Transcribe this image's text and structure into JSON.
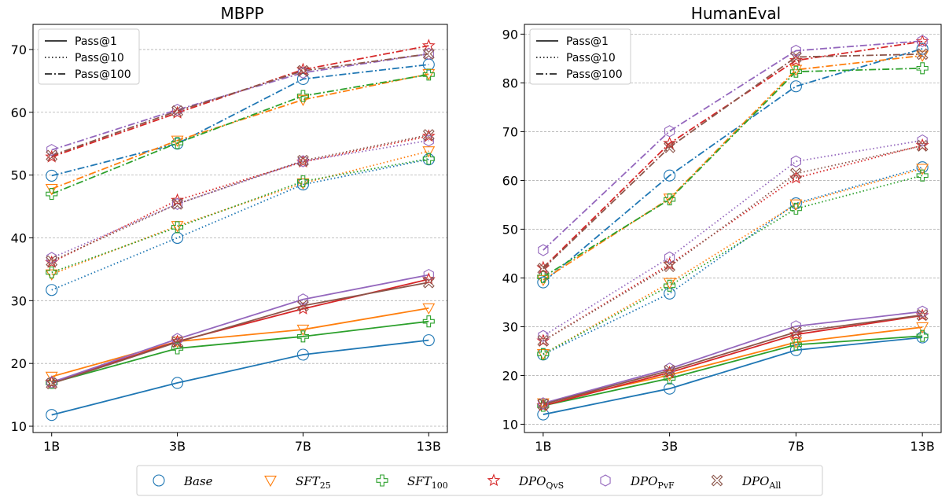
{
  "colors": {
    "Base": "#1f77b4",
    "SFT25": "#ff7f0e",
    "SFT100": "#2ca02c",
    "DPOQvS": "#d62728",
    "DPOPvF": "#9467bd",
    "DPOAll": "#8c564b"
  },
  "markers": {
    "Base": "circle",
    "SFT25": "triangle-down",
    "SFT100": "plus",
    "DPOQvS": "star",
    "DPOPvF": "hexagon",
    "DPOAll": "x"
  },
  "style_legend": {
    "items": [
      {
        "label": "Pass@1",
        "dash": "solid"
      },
      {
        "label": "Pass@10",
        "dash": "dotted"
      },
      {
        "label": "Pass@100",
        "dash": "dashdot"
      }
    ]
  },
  "bottom_legend": {
    "items": [
      {
        "key": "Base",
        "label": "Base",
        "sub": ""
      },
      {
        "key": "SFT25",
        "label": "SFT",
        "sub": "25"
      },
      {
        "key": "SFT100",
        "label": "SFT",
        "sub": "100"
      },
      {
        "key": "DPOQvS",
        "label": "DPO",
        "sub": "QvS"
      },
      {
        "key": "DPOPvF",
        "label": "DPO",
        "sub": "PvF"
      },
      {
        "key": "DPOAll",
        "label": "DPO",
        "sub": "All"
      }
    ]
  },
  "chart_data": [
    {
      "type": "line",
      "title": "MBPP",
      "categories": [
        "1B",
        "3B",
        "7B",
        "13B"
      ],
      "ylim": [
        9,
        74
      ],
      "yticks": [
        10,
        20,
        30,
        40,
        50,
        60,
        70
      ],
      "grid": true,
      "legend_position": "top-left",
      "series": [
        {
          "model": "Base",
          "metric": "Pass@1",
          "values": [
            11.8,
            16.9,
            21.4,
            23.7
          ]
        },
        {
          "model": "SFT25",
          "metric": "Pass@1",
          "values": [
            17.9,
            23.5,
            25.4,
            28.8
          ]
        },
        {
          "model": "SFT100",
          "metric": "Pass@1",
          "values": [
            16.9,
            22.4,
            24.3,
            26.7
          ]
        },
        {
          "model": "DPOQvS",
          "metric": "Pass@1",
          "values": [
            17.0,
            23.5,
            28.7,
            33.4
          ]
        },
        {
          "model": "DPOPvF",
          "metric": "Pass@1",
          "values": [
            17.0,
            23.9,
            30.2,
            34.1
          ]
        },
        {
          "model": "DPOAll",
          "metric": "Pass@1",
          "values": [
            16.8,
            23.4,
            29.2,
            32.9
          ]
        },
        {
          "model": "Base",
          "metric": "Pass@10",
          "values": [
            31.7,
            40.0,
            48.5,
            52.5
          ]
        },
        {
          "model": "SFT25",
          "metric": "Pass@10",
          "values": [
            34.2,
            41.9,
            48.7,
            53.8
          ]
        },
        {
          "model": "SFT100",
          "metric": "Pass@10",
          "values": [
            34.5,
            41.7,
            49.0,
            52.6
          ]
        },
        {
          "model": "DPOQvS",
          "metric": "Pass@10",
          "values": [
            36.1,
            46.0,
            52.1,
            56.2
          ]
        },
        {
          "model": "DPOPvF",
          "metric": "Pass@10",
          "values": [
            36.8,
            45.4,
            52.2,
            55.5
          ]
        },
        {
          "model": "DPOAll",
          "metric": "Pass@10",
          "values": [
            36.3,
            45.4,
            52.3,
            56.4
          ]
        },
        {
          "model": "Base",
          "metric": "Pass@100",
          "values": [
            49.9,
            55.0,
            65.3,
            67.6
          ]
        },
        {
          "model": "SFT25",
          "metric": "Pass@100",
          "values": [
            47.8,
            55.5,
            62.0,
            66.1
          ]
        },
        {
          "model": "SFT100",
          "metric": "Pass@100",
          "values": [
            47.0,
            55.1,
            62.6,
            66.0
          ]
        },
        {
          "model": "DPOQvS",
          "metric": "Pass@100",
          "values": [
            52.9,
            59.9,
            66.8,
            70.6
          ]
        },
        {
          "model": "DPOPvF",
          "metric": "Pass@100",
          "values": [
            54.0,
            60.4,
            66.3,
            69.3
          ]
        },
        {
          "model": "DPOAll",
          "metric": "Pass@100",
          "values": [
            53.1,
            60.2,
            66.6,
            69.3
          ]
        }
      ]
    },
    {
      "type": "line",
      "title": "HumanEval",
      "categories": [
        "1B",
        "3B",
        "7B",
        "13B"
      ],
      "ylim": [
        8.3,
        92
      ],
      "yticks": [
        10,
        20,
        30,
        40,
        50,
        60,
        70,
        80,
        90
      ],
      "grid": true,
      "legend_position": "top-left",
      "series": [
        {
          "model": "Base",
          "metric": "Pass@1",
          "values": [
            12.0,
            17.3,
            25.2,
            27.8
          ]
        },
        {
          "model": "SFT25",
          "metric": "Pass@1",
          "values": [
            14.3,
            20.1,
            26.8,
            29.9
          ]
        },
        {
          "model": "SFT100",
          "metric": "Pass@1",
          "values": [
            13.8,
            19.4,
            26.3,
            28.1
          ]
        },
        {
          "model": "DPOQvS",
          "metric": "Pass@1",
          "values": [
            13.8,
            20.6,
            28.4,
            32.3
          ]
        },
        {
          "model": "DPOPvF",
          "metric": "Pass@1",
          "values": [
            14.3,
            21.4,
            30.1,
            33.1
          ]
        },
        {
          "model": "DPOAll",
          "metric": "Pass@1",
          "values": [
            14.1,
            21.0,
            28.9,
            32.4
          ]
        },
        {
          "model": "Base",
          "metric": "Pass@10",
          "values": [
            24.3,
            36.8,
            55.3,
            62.7
          ]
        },
        {
          "model": "SFT25",
          "metric": "Pass@10",
          "values": [
            24.4,
            39.0,
            55.1,
            62.4
          ]
        },
        {
          "model": "SFT100",
          "metric": "Pass@10",
          "values": [
            24.4,
            38.4,
            54.2,
            61.0
          ]
        },
        {
          "model": "DPOQvS",
          "metric": "Pass@10",
          "values": [
            27.1,
            42.8,
            60.5,
            67.2
          ]
        },
        {
          "model": "DPOPvF",
          "metric": "Pass@10",
          "values": [
            28.1,
            44.2,
            63.9,
            68.2
          ]
        },
        {
          "model": "DPOAll",
          "metric": "Pass@10",
          "values": [
            27.1,
            42.4,
            61.4,
            67.1
          ]
        },
        {
          "model": "Base",
          "metric": "Pass@100",
          "values": [
            39.1,
            61.0,
            79.3,
            87.0
          ]
        },
        {
          "model": "SFT25",
          "metric": "Pass@100",
          "values": [
            39.6,
            56.3,
            82.7,
            85.6
          ]
        },
        {
          "model": "SFT100",
          "metric": "Pass@100",
          "values": [
            40.2,
            56.1,
            82.3,
            83.0
          ]
        },
        {
          "model": "DPOQvS",
          "metric": "Pass@100",
          "values": [
            42.1,
            67.6,
            84.6,
            88.5
          ]
        },
        {
          "model": "DPOPvF",
          "metric": "Pass@100",
          "values": [
            45.7,
            70.1,
            86.6,
            88.6
          ]
        },
        {
          "model": "DPOAll",
          "metric": "Pass@100",
          "values": [
            41.9,
            66.8,
            85.3,
            85.9
          ]
        }
      ]
    }
  ]
}
